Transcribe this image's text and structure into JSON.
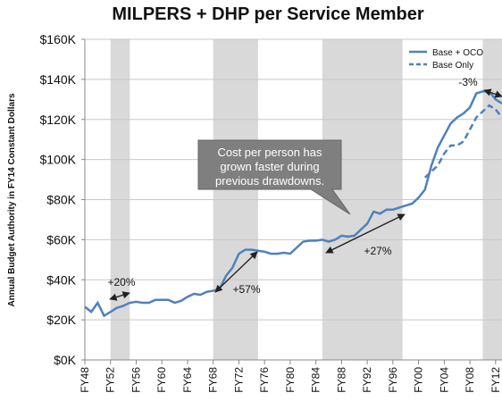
{
  "chart_data": {
    "type": "line",
    "title": "MILPERS + DHP per Service Member",
    "y_label": "Annual Budget Authority in FY14 Constant Dollars",
    "x": [
      1948,
      1949,
      1950,
      1951,
      1952,
      1953,
      1954,
      1955,
      1956,
      1957,
      1958,
      1959,
      1960,
      1961,
      1962,
      1963,
      1964,
      1965,
      1966,
      1967,
      1968,
      1969,
      1970,
      1971,
      1972,
      1973,
      1974,
      1975,
      1976,
      1977,
      1978,
      1979,
      1980,
      1981,
      1982,
      1983,
      1984,
      1985,
      1986,
      1987,
      1988,
      1989,
      1990,
      1991,
      1992,
      1993,
      1994,
      1995,
      1996,
      1997,
      1998,
      1999,
      2000,
      2001,
      2002,
      2003,
      2004,
      2005,
      2006,
      2007,
      2008,
      2009,
      2010,
      2011,
      2012,
      2013
    ],
    "series": [
      {
        "name": "Base + OCO",
        "color": "#4f81bd",
        "dash": false,
        "values": [
          26500,
          24000,
          28500,
          22000,
          24000,
          26000,
          27000,
          28500,
          29000,
          28500,
          28500,
          30000,
          30000,
          30000,
          28500,
          29500,
          31500,
          33000,
          32500,
          34000,
          34500,
          35500,
          42000,
          46000,
          53000,
          55000,
          55000,
          54500,
          54000,
          53000,
          53000,
          53500,
          53000,
          56000,
          59000,
          59500,
          59500,
          60000,
          59000,
          60000,
          62000,
          61500,
          62000,
          65000,
          68000,
          74000,
          73000,
          75000,
          75000,
          76000,
          77000,
          78000,
          81000,
          85000,
          97000,
          106000,
          112000,
          118000,
          121000,
          123000,
          126000,
          133000,
          134000,
          134000,
          130000,
          128000
        ]
      },
      {
        "name": "Base Only",
        "color": "#4f81bd",
        "dash": true,
        "values": [
          null,
          null,
          null,
          null,
          null,
          null,
          null,
          null,
          null,
          null,
          null,
          null,
          null,
          null,
          null,
          null,
          null,
          null,
          null,
          null,
          null,
          null,
          null,
          null,
          null,
          null,
          null,
          null,
          null,
          null,
          null,
          null,
          null,
          null,
          null,
          null,
          null,
          null,
          null,
          null,
          null,
          null,
          null,
          null,
          null,
          null,
          null,
          null,
          null,
          null,
          null,
          null,
          null,
          91000,
          94000,
          97000,
          103000,
          107000,
          107000,
          109000,
          115000,
          121000,
          124000,
          127000,
          125000,
          121000
        ]
      }
    ],
    "xlim": [
      1948,
      2013
    ],
    "xticks": [
      {
        "value": 1948,
        "label": "FY48"
      },
      {
        "value": 1952,
        "label": "FY52"
      },
      {
        "value": 1956,
        "label": "FY56"
      },
      {
        "value": 1960,
        "label": "FY60"
      },
      {
        "value": 1964,
        "label": "FY64"
      },
      {
        "value": 1968,
        "label": "FY68"
      },
      {
        "value": 1972,
        "label": "FY72"
      },
      {
        "value": 1976,
        "label": "FY76"
      },
      {
        "value": 1980,
        "label": "FY80"
      },
      {
        "value": 1984,
        "label": "FY84"
      },
      {
        "value": 1988,
        "label": "FY88"
      },
      {
        "value": 1992,
        "label": "FY92"
      },
      {
        "value": 1996,
        "label": "FY96"
      },
      {
        "value": 2000,
        "label": "FY00"
      },
      {
        "value": 2004,
        "label": "FY04"
      },
      {
        "value": 2008,
        "label": "FY08"
      },
      {
        "value": 2012,
        "label": "FY12"
      }
    ],
    "ylim": [
      0,
      160000
    ],
    "yticks": [
      {
        "value": 0,
        "label": "$0K"
      },
      {
        "value": 20000,
        "label": "$20K"
      },
      {
        "value": 40000,
        "label": "$40K"
      },
      {
        "value": 60000,
        "label": "$60K"
      },
      {
        "value": 80000,
        "label": "$80K"
      },
      {
        "value": 100000,
        "label": "$100K"
      },
      {
        "value": 120000,
        "label": "$120K"
      },
      {
        "value": 140000,
        "label": "$140K"
      },
      {
        "value": 160000,
        "label": "$160K"
      }
    ],
    "grid": true,
    "legend": "upper right",
    "shaded_periods": [
      [
        1952,
        1955
      ],
      [
        1968,
        1975
      ],
      [
        1985,
        1997.5
      ],
      [
        2010,
        2013
      ]
    ],
    "annotations": [
      "+20%",
      "+57%",
      "+27%",
      "-3%"
    ],
    "callout": [
      "Cost per person has",
      "grown faster during",
      "previous drawdowns."
    ]
  }
}
